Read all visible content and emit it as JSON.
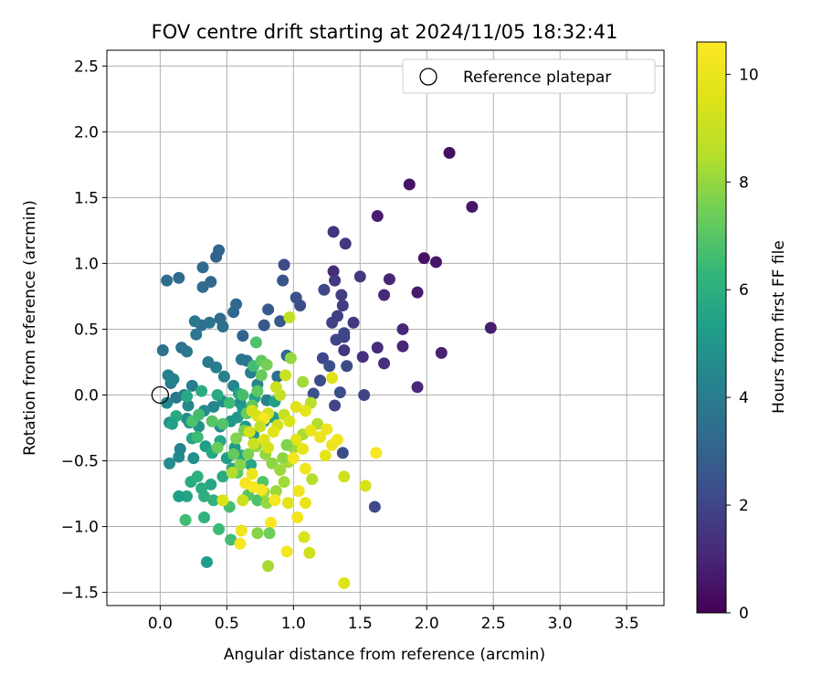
{
  "chart_data": {
    "type": "scatter",
    "title": "FOV centre drift starting at 2024/11/05 18:32:41",
    "xlabel": "Angular distance from reference (arcmin)",
    "ylabel": "Rotation from reference (arcmin)",
    "xlim": [
      -0.4,
      3.78
    ],
    "ylim": [
      -1.6,
      2.62
    ],
    "xticks": [
      0.0,
      0.5,
      1.0,
      1.5,
      2.0,
      2.5,
      3.0,
      3.5
    ],
    "xtick_labels": [
      "0.0",
      "0.5",
      "1.0",
      "1.5",
      "2.0",
      "2.5",
      "3.0",
      "3.5"
    ],
    "yticks": [
      -1.5,
      -1.0,
      -0.5,
      0.0,
      0.5,
      1.0,
      1.5,
      2.0,
      2.5
    ],
    "ytick_labels": [
      "−1.5",
      "−1.0",
      "−0.5",
      "0.0",
      "0.5",
      "1.0",
      "1.5",
      "2.0",
      "2.5"
    ],
    "grid": true,
    "legend": {
      "position": "top-right",
      "label": "Reference platepar"
    },
    "reference_point": {
      "x": 0.0,
      "y": 0.0
    },
    "colorbar": {
      "label": "Hours from first FF file",
      "colormap": "viridis",
      "min": 0,
      "max": 10.6,
      "ticks": [
        0,
        2,
        4,
        6,
        8,
        10
      ],
      "tick_labels": [
        "0",
        "2",
        "4",
        "6",
        "8",
        "10"
      ]
    },
    "points": [
      [
        2.17,
        1.84,
        0.4
      ],
      [
        1.87,
        1.6,
        0.5
      ],
      [
        2.34,
        1.43,
        0.6
      ],
      [
        1.63,
        1.36,
        0.8
      ],
      [
        1.98,
        1.04,
        0.5
      ],
      [
        2.07,
        1.01,
        0.6
      ],
      [
        1.39,
        1.15,
        1.5
      ],
      [
        1.3,
        1.24,
        1.4
      ],
      [
        1.3,
        0.94,
        1.2
      ],
      [
        1.5,
        0.9,
        1.6
      ],
      [
        1.72,
        0.88,
        1.0
      ],
      [
        1.68,
        0.76,
        1.1
      ],
      [
        1.93,
        0.78,
        0.7
      ],
      [
        2.48,
        0.51,
        0.8
      ],
      [
        2.11,
        0.32,
        0.9
      ],
      [
        1.82,
        0.37,
        1.0
      ],
      [
        1.82,
        0.5,
        1.1
      ],
      [
        1.63,
        0.36,
        1.2
      ],
      [
        1.68,
        0.24,
        1.3
      ],
      [
        1.93,
        0.06,
        1.1
      ],
      [
        1.52,
        0.29,
        1.3
      ],
      [
        1.38,
        0.34,
        1.5
      ],
      [
        1.45,
        0.55,
        1.6
      ],
      [
        1.31,
        0.87,
        1.6
      ],
      [
        1.36,
        0.76,
        1.8
      ],
      [
        1.37,
        0.68,
        1.7
      ],
      [
        1.23,
        0.8,
        2.1
      ],
      [
        1.05,
        0.68,
        2.3
      ],
      [
        1.02,
        0.74,
        2.4
      ],
      [
        0.93,
        0.99,
        2.2
      ],
      [
        0.92,
        0.87,
        2.5
      ],
      [
        1.38,
        0.44,
        1.9
      ],
      [
        1.33,
        0.6,
        1.8
      ],
      [
        1.32,
        0.42,
        2.0
      ],
      [
        1.22,
        0.28,
        2.1
      ],
      [
        1.27,
        0.22,
        2.3
      ],
      [
        1.29,
        0.55,
        1.9
      ],
      [
        1.4,
        0.22,
        2.2
      ],
      [
        1.38,
        0.47,
        2.0
      ],
      [
        1.53,
        0.0,
        2.0
      ],
      [
        1.35,
        0.02,
        2.3
      ],
      [
        1.37,
        -0.44,
        2.3
      ],
      [
        1.61,
        -0.85,
        2.2
      ],
      [
        1.31,
        -0.08,
        2.0
      ],
      [
        1.2,
        0.11,
        2.2
      ],
      [
        1.15,
        0.01,
        2.4
      ],
      [
        0.9,
        0.56,
        2.6
      ],
      [
        0.81,
        0.65,
        2.7
      ],
      [
        0.78,
        0.53,
        2.6
      ],
      [
        0.62,
        0.45,
        3.0
      ],
      [
        0.55,
        0.63,
        3.2
      ],
      [
        0.57,
        0.69,
        3.1
      ],
      [
        0.45,
        0.58,
        3.3
      ],
      [
        0.38,
        0.86,
        3.2
      ],
      [
        0.32,
        0.82,
        3.3
      ],
      [
        0.32,
        0.97,
        3.3
      ],
      [
        0.44,
        1.1,
        3.1
      ],
      [
        0.42,
        1.05,
        3.0
      ],
      [
        0.14,
        0.89,
        3.3
      ],
      [
        0.05,
        0.87,
        3.4
      ],
      [
        0.47,
        0.52,
        3.5
      ],
      [
        0.37,
        0.55,
        3.7
      ],
      [
        0.31,
        0.53,
        3.5
      ],
      [
        0.26,
        0.56,
        3.8
      ],
      [
        0.27,
        0.46,
        3.7
      ],
      [
        0.2,
        0.33,
        3.8
      ],
      [
        0.16,
        0.36,
        3.6
      ],
      [
        0.02,
        0.34,
        3.5
      ],
      [
        0.08,
        0.09,
        3.9
      ],
      [
        0.06,
        0.15,
        4.1
      ],
      [
        0.1,
        0.12,
        4.2
      ],
      [
        0.12,
        -0.02,
        3.8
      ],
      [
        0.18,
        0.0,
        4.0
      ],
      [
        0.24,
        0.07,
        4.1
      ],
      [
        0.36,
        0.25,
        3.9
      ],
      [
        0.42,
        0.21,
        4.0
      ],
      [
        0.48,
        0.14,
        4.1
      ],
      [
        0.61,
        0.27,
        3.8
      ],
      [
        0.65,
        0.26,
        3.7
      ],
      [
        0.68,
        0.17,
        4.1
      ],
      [
        0.95,
        0.3,
        3.2
      ],
      [
        0.88,
        0.14,
        3.5
      ],
      [
        0.8,
        -0.04,
        4.2
      ],
      [
        0.73,
        0.08,
        4.3
      ],
      [
        0.55,
        0.07,
        4.4
      ],
      [
        0.6,
        -0.06,
        4.5
      ],
      [
        0.47,
        -0.05,
        4.6
      ],
      [
        0.4,
        -0.09,
        4.4
      ],
      [
        0.33,
        -0.12,
        4.6
      ],
      [
        0.21,
        -0.08,
        4.5
      ],
      [
        0.2,
        -0.18,
        4.6
      ],
      [
        0.05,
        -0.06,
        4.4
      ],
      [
        0.07,
        -0.21,
        4.7
      ],
      [
        0.07,
        -0.52,
        4.6
      ],
      [
        0.14,
        -0.47,
        4.5
      ],
      [
        0.15,
        -0.41,
        4.3
      ],
      [
        0.25,
        -0.48,
        4.7
      ],
      [
        0.22,
        -0.21,
        4.8
      ],
      [
        0.29,
        -0.24,
        4.9
      ],
      [
        0.39,
        -0.2,
        5.0
      ],
      [
        0.45,
        -0.24,
        4.8
      ],
      [
        0.53,
        -0.2,
        5.0
      ],
      [
        0.58,
        -0.17,
        5.1
      ],
      [
        0.62,
        -0.1,
        5.2
      ],
      [
        0.64,
        -0.24,
        5.1
      ],
      [
        0.7,
        -0.3,
        5.0
      ],
      [
        0.78,
        -0.2,
        5.1
      ],
      [
        0.85,
        -0.17,
        5.3
      ],
      [
        0.86,
        -0.05,
        5.4
      ],
      [
        0.71,
        -0.02,
        5.5
      ],
      [
        0.59,
        0.01,
        5.6
      ],
      [
        0.43,
        0.0,
        5.8
      ],
      [
        0.31,
        0.03,
        5.9
      ],
      [
        0.2,
        -0.01,
        5.7
      ],
      [
        0.12,
        -0.16,
        5.8
      ],
      [
        0.09,
        -0.22,
        5.5
      ],
      [
        0.24,
        -0.33,
        5.6
      ],
      [
        0.34,
        -0.39,
        5.4
      ],
      [
        0.39,
        -0.44,
        5.7
      ],
      [
        0.45,
        -0.35,
        5.6
      ],
      [
        0.5,
        -0.48,
        5.3
      ],
      [
        0.56,
        -0.4,
        5.2
      ],
      [
        0.61,
        -0.46,
        5.5
      ],
      [
        0.68,
        -0.53,
        5.6
      ],
      [
        0.54,
        -0.56,
        5.6
      ],
      [
        0.47,
        -0.62,
        5.8
      ],
      [
        0.38,
        -0.68,
        5.7
      ],
      [
        0.31,
        -0.71,
        5.9
      ],
      [
        0.23,
        -0.66,
        5.9
      ],
      [
        0.28,
        -0.62,
        6.0
      ],
      [
        0.33,
        -0.77,
        6.0
      ],
      [
        0.4,
        -0.8,
        6.1
      ],
      [
        0.2,
        -0.77,
        5.6
      ],
      [
        0.14,
        -0.77,
        5.3
      ],
      [
        0.35,
        -1.27,
        5.3
      ],
      [
        0.33,
        -0.93,
        6.2
      ],
      [
        0.19,
        -0.95,
        6.6
      ],
      [
        0.44,
        -1.02,
        6.5
      ],
      [
        0.53,
        -1.1,
        6.6
      ],
      [
        0.52,
        -0.85,
        6.7
      ],
      [
        0.73,
        -0.8,
        6.8
      ],
      [
        0.77,
        -0.66,
        6.9
      ],
      [
        0.66,
        -0.76,
        7.0
      ],
      [
        0.58,
        -0.59,
        7.1
      ],
      [
        0.55,
        -0.45,
        7.2
      ],
      [
        0.43,
        -0.4,
        7.3
      ],
      [
        0.28,
        -0.32,
        6.5
      ],
      [
        0.24,
        -0.2,
        6.8
      ],
      [
        0.29,
        -0.15,
        6.6
      ],
      [
        0.39,
        -0.2,
        7.0
      ],
      [
        0.47,
        -0.22,
        6.9
      ],
      [
        0.52,
        -0.06,
        6.5
      ],
      [
        0.62,
        0.0,
        6.7
      ],
      [
        0.7,
        0.22,
        6.6
      ],
      [
        0.72,
        0.4,
        6.8
      ],
      [
        0.76,
        0.26,
        7.2
      ],
      [
        0.8,
        0.23,
        7.5
      ],
      [
        0.76,
        0.15,
        7.3
      ],
      [
        0.73,
        0.03,
        7.1
      ],
      [
        0.69,
        -0.08,
        7.2
      ],
      [
        0.65,
        -0.14,
        7.3
      ],
      [
        0.63,
        -0.27,
        7.5
      ],
      [
        0.57,
        -0.33,
        7.7
      ],
      [
        0.6,
        -0.53,
        7.8
      ],
      [
        0.66,
        -0.45,
        7.6
      ],
      [
        0.72,
        -0.39,
        7.9
      ],
      [
        0.79,
        -0.45,
        8.0
      ],
      [
        0.84,
        -0.52,
        7.9
      ],
      [
        0.9,
        -0.57,
        8.1
      ],
      [
        0.78,
        -0.74,
        8.2
      ],
      [
        0.8,
        -0.82,
        8.0
      ],
      [
        0.87,
        -0.73,
        8.1
      ],
      [
        0.93,
        -0.66,
        8.2
      ],
      [
        0.96,
        -0.51,
        8.3
      ],
      [
        1.0,
        -0.4,
        8.1
      ],
      [
        1.07,
        -0.3,
        8.3
      ],
      [
        1.18,
        -0.22,
        8.4
      ],
      [
        1.13,
        -0.06,
        8.6
      ],
      [
        1.07,
        0.1,
        8.2
      ],
      [
        0.98,
        0.28,
        8.0
      ],
      [
        0.97,
        0.59,
        8.8
      ],
      [
        0.94,
        0.15,
        9.1
      ],
      [
        0.9,
        0.0,
        8.9
      ],
      [
        0.87,
        0.06,
        9.0
      ],
      [
        0.93,
        -0.15,
        9.0
      ],
      [
        0.88,
        -0.23,
        9.2
      ],
      [
        0.81,
        -0.14,
        9.3
      ],
      [
        0.73,
        -0.16,
        9.5
      ],
      [
        0.67,
        -0.28,
        9.3
      ],
      [
        0.7,
        -0.37,
        9.1
      ],
      [
        0.78,
        -0.34,
        9.6
      ],
      [
        0.81,
        -0.4,
        9.4
      ],
      [
        0.85,
        -0.28,
        9.7
      ],
      [
        0.97,
        -0.2,
        9.5
      ],
      [
        1.02,
        -0.09,
        9.6
      ],
      [
        1.09,
        -0.12,
        9.8
      ],
      [
        1.02,
        -0.34,
        9.7
      ],
      [
        1.07,
        -0.41,
        9.9
      ],
      [
        1.13,
        -0.27,
        9.9
      ],
      [
        1.2,
        -0.32,
        10.0
      ],
      [
        1.25,
        -0.26,
        10.1
      ],
      [
        1.24,
        -0.46,
        9.8
      ],
      [
        1.29,
        -0.38,
        10.0
      ],
      [
        1.33,
        -0.34,
        10.2
      ],
      [
        1.29,
        0.13,
        9.6
      ],
      [
        1.14,
        -0.64,
        8.5
      ],
      [
        1.12,
        -1.2,
        9.2
      ],
      [
        1.08,
        -1.08,
        9.4
      ],
      [
        1.03,
        -0.93,
        10.2
      ],
      [
        0.95,
        -1.19,
        10.3
      ],
      [
        0.83,
        -0.97,
        10.5
      ],
      [
        0.73,
        -1.05,
        7.8
      ],
      [
        0.61,
        -1.03,
        10.1
      ],
      [
        0.6,
        -1.13,
        10.4
      ],
      [
        0.47,
        -0.8,
        9.5
      ],
      [
        0.81,
        -1.3,
        8.3
      ],
      [
        0.82,
        -1.05,
        7.4
      ],
      [
        0.64,
        -0.67,
        10.3
      ],
      [
        0.69,
        -0.6,
        10.0
      ],
      [
        0.76,
        -0.72,
        10.4
      ],
      [
        0.86,
        -0.8,
        10.3
      ],
      [
        0.96,
        -0.82,
        9.7
      ],
      [
        1.04,
        -0.73,
        10.1
      ],
      [
        1.09,
        -0.82,
        9.9
      ],
      [
        1.38,
        -0.62,
        9.2
      ],
      [
        1.38,
        -1.43,
        9.6
      ],
      [
        1.54,
        -0.69,
        9.4
      ],
      [
        1.62,
        -0.44,
        10.4
      ],
      [
        0.95,
        -0.38,
        7.7
      ],
      [
        0.92,
        -0.48,
        7.9
      ],
      [
        1.0,
        -0.48,
        10.2
      ],
      [
        1.09,
        -0.56,
        10.2
      ],
      [
        0.78,
        -0.18,
        10.5
      ],
      [
        0.75,
        -0.24,
        9.0
      ],
      [
        0.69,
        -0.12,
        9.3
      ],
      [
        0.7,
        -0.7,
        10.5
      ],
      [
        0.62,
        -0.8,
        9.1
      ],
      [
        0.54,
        -0.59,
        8.4
      ]
    ]
  }
}
